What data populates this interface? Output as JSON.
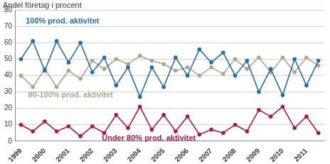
{
  "chart_data": {
    "type": "line",
    "ylabel": "Andel företag i procent",
    "categories": [
      "1999",
      null,
      "2000",
      null,
      "2001",
      null,
      "2002",
      null,
      "2003",
      null,
      "2004",
      null,
      "2005",
      null,
      "2006",
      null,
      "2007",
      null,
      "2008",
      null,
      "2009",
      null,
      "2010",
      null,
      "2011",
      null
    ],
    "series": [
      {
        "name": "100% prod. aktivitet",
        "color": "#1f6fa8",
        "marker": "circle",
        "values": [
          50,
          61,
          43,
          61,
          48,
          60,
          42,
          51,
          34,
          45,
          27,
          45,
          33,
          51,
          40,
          56,
          48,
          54,
          40,
          49,
          30,
          44,
          28,
          50,
          34,
          49
        ]
      },
      {
        "name": "80-100% prod. aktivitet",
        "color": "#b3a386",
        "marker": "circle",
        "values": [
          40,
          33,
          44,
          33,
          43,
          38,
          49,
          44,
          50,
          47,
          52,
          49,
          47,
          43,
          45,
          40,
          45,
          41,
          50,
          44,
          51,
          42,
          51,
          42,
          51,
          46
        ]
      },
      {
        "name": "Under 80% prod. aktivitet",
        "color": "#a8174e",
        "marker": "circle",
        "values": [
          10,
          6,
          12,
          6,
          9,
          3,
          9,
          5,
          16,
          8,
          21,
          7,
          16,
          6,
          15,
          4,
          7,
          5,
          10,
          6,
          19,
          15,
          21,
          8,
          15,
          5
        ]
      }
    ],
    "ylim": [
      0,
      80
    ],
    "yticks": [
      0,
      10,
      20,
      30,
      40,
      50,
      60,
      70,
      80
    ],
    "grid": true
  }
}
